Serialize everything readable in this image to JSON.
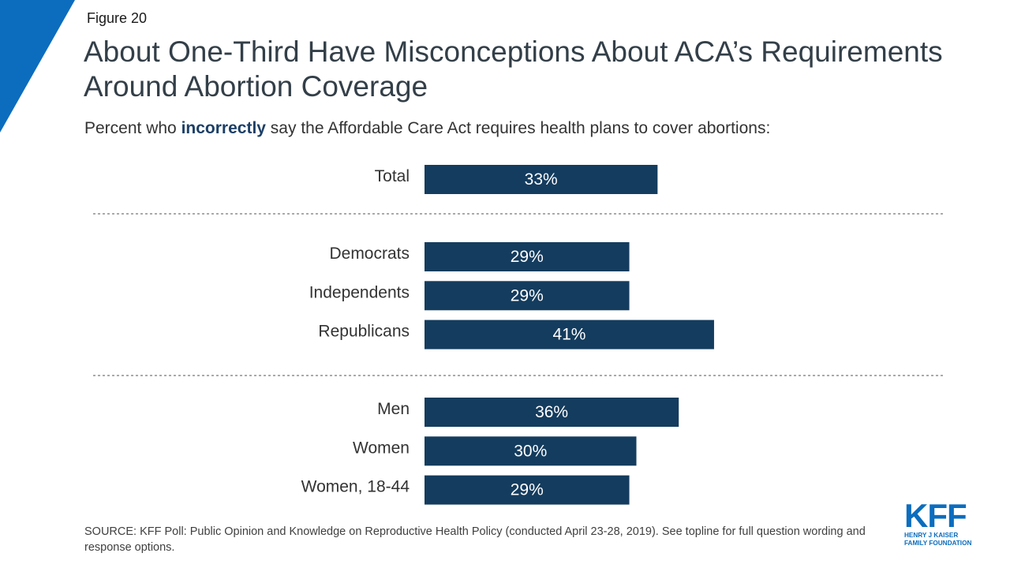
{
  "figure_label": "Figure 20",
  "title": "About One-Third Have Misconceptions About ACA’s Requirements Around Abortion Coverage",
  "subtitle": {
    "before": "Percent who ",
    "emphasis": "incorrectly",
    "after": " say the Affordable Care Act requires health plans to cover abortions:"
  },
  "source": "SOURCE: KFF Poll: Public Opinion and Knowledge on Reproductive Health Policy (conducted April 23-28, 2019). See topline for full question wording and response options.",
  "logo": {
    "main": "KFF",
    "line1": "HENRY J KAISER",
    "line2": "FAMILY FOUNDATION"
  },
  "colors": {
    "bar": "#143c5e",
    "accent": "#0c6dbe",
    "bar_label": "#ffffff"
  },
  "chart_data": {
    "type": "bar",
    "orientation": "horizontal",
    "categories": [
      "Total",
      "Democrats",
      "Independents",
      "Republicans",
      "Men",
      "Women",
      "Women, 18-44"
    ],
    "values": [
      33,
      29,
      29,
      41,
      36,
      30,
      29
    ],
    "data_labels": [
      "33%",
      "29%",
      "29%",
      "41%",
      "36%",
      "30%",
      "29%"
    ],
    "groups": [
      {
        "categories": [
          "Total"
        ]
      },
      {
        "categories": [
          "Democrats",
          "Independents",
          "Republicans"
        ]
      },
      {
        "categories": [
          "Men",
          "Women",
          "Women, 18-44"
        ]
      }
    ],
    "unit": "%",
    "xlim": [
      0,
      100
    ],
    "grid": false,
    "group_separators": "dashed"
  }
}
